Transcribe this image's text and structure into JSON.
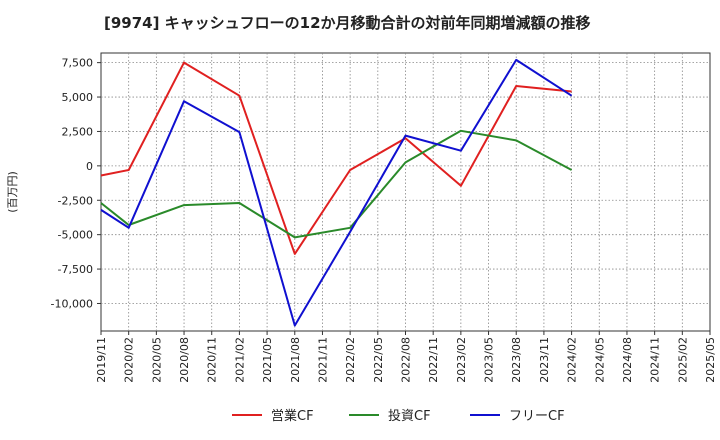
{
  "chart_data": {
    "type": "line",
    "title": "[9974]  キャッシュフローの12か月移動合計の対前年同期増減額の推移",
    "ylabel": "(百万円)",
    "xlabel": "",
    "ylim": [
      -12000,
      8200
    ],
    "yticks": [
      7500,
      5000,
      2500,
      0,
      -2500,
      -5000,
      -7500,
      -10000
    ],
    "ytick_labels": [
      "7,500",
      "5,000",
      "2,500",
      "0",
      "-2,500",
      "-5,000",
      "-7,500",
      "-10,000"
    ],
    "categories": [
      "2019/11",
      "2020/02",
      "2020/05",
      "2020/08",
      "2020/11",
      "2021/02",
      "2021/05",
      "2021/08",
      "2021/11",
      "2022/02",
      "2022/05",
      "2022/08",
      "2022/11",
      "2023/02",
      "2023/05",
      "2023/08",
      "2023/11",
      "2024/02",
      "2024/05",
      "2024/08",
      "2024/11",
      "2025/02",
      "2025/05"
    ],
    "grid": true,
    "legend_position": "bottom",
    "series": [
      {
        "name": "営業CF",
        "color": "#e02020",
        "values": [
          -700,
          -300,
          null,
          7500,
          null,
          5100,
          null,
          -6400,
          null,
          -300,
          null,
          2000,
          null,
          -1450,
          null,
          5800,
          null,
          5400,
          null,
          null,
          null,
          null,
          null
        ]
      },
      {
        "name": "投資CF",
        "color": "#2a8a2a",
        "values": [
          -2700,
          -4300,
          null,
          -2850,
          null,
          -2700,
          null,
          -5200,
          null,
          -4500,
          null,
          250,
          null,
          2550,
          null,
          1850,
          null,
          -300,
          null,
          null,
          null,
          null,
          null
        ]
      },
      {
        "name": "フリーCF",
        "color": "#1010d0",
        "values": [
          -3200,
          -4500,
          null,
          4700,
          null,
          2450,
          null,
          -11600,
          null,
          -4800,
          null,
          2200,
          null,
          1100,
          null,
          7700,
          null,
          5100,
          null,
          null,
          null,
          null,
          null
        ]
      }
    ]
  }
}
